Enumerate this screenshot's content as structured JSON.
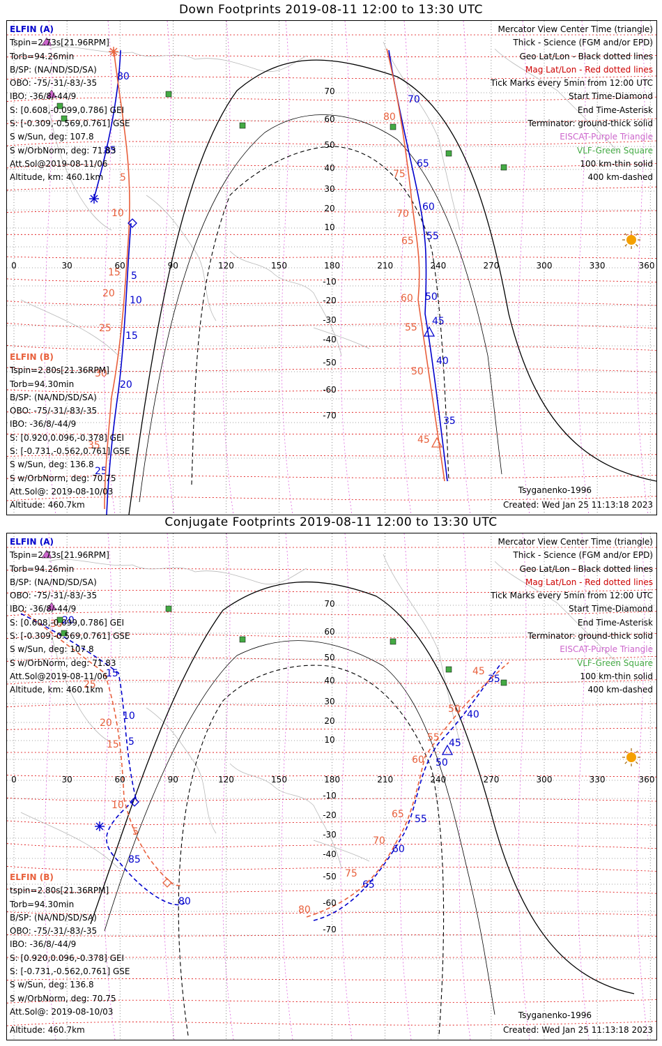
{
  "panels": [
    {
      "title": "Down Footprints 2019-08-11 12:00 to 13:30 UTC",
      "sc_a": {
        "name": "ELFIN (A)",
        "lines": [
          "Tspin=2.73s[21.96RPM]",
          "Torb=94.26min",
          "B/SP: (NA/ND/SD/SA)",
          "OBO: -75/-31/-83/-35",
          "IBO: -36/8/-44/9",
          "S: [0.608,-0.099,0.786] GEI",
          "S: [-0.309,-0.569,0.761] GSE",
          "S w/Sun, deg: 107.8",
          "S w/OrbNorm, deg: 71.83",
          "Att.Sol@2019-08-11/06",
          "Altitude, km: 460.1km"
        ]
      },
      "sc_b": {
        "name": "ELFIN (B)",
        "lines": [
          "Tspin=2.80s[21.36RPM]",
          "Torb=94.30min",
          "B/SP: (NA/ND/SD/SA)",
          "OBO: -75/-31/-83/-35",
          "IBO: -36/8/-44/9",
          "S: [0.920,0.096,-0.378] GEI",
          "S: [-0.731,-0.562,0.761] GSE",
          "S w/Sun, deg: 136.8",
          "S w/OrbNorm, deg: 70.75",
          "Att.Sol@: 2019-08-10/03",
          "Altitude: 460.7km"
        ]
      },
      "legend": {
        "black": [
          "Mercator View Center Time (triangle)",
          "Thick - Science (FGM and/or EPD)",
          "Geo Lat/Lon - Black dotted lines"
        ],
        "red": "Mag Lat/Lon - Red dotted lines",
        "black2": [
          "Tick Marks every 5min from 12:00 UTC",
          "Start Time-Diamond",
          "End Time-Asterisk",
          "Terminator: ground-thick solid"
        ],
        "purple": "EISCAT-Purple Triangle",
        "green": "VLF-Green Square",
        "black3": [
          "100 km-thin solid",
          "400 km-dashed"
        ]
      },
      "model": "Tsyganenko-1996",
      "created": "Created: Wed Jan 25 11:13:18 2023"
    },
    {
      "title": "Conjugate Footprints 2019-08-11 12:00 to 13:30 UTC",
      "sc_a": {
        "name": "ELFIN (A)",
        "lines": [
          "Tspin=2.73s[21.96RPM]",
          "Torb=94.26min",
          "B/SP: (NA/ND/SD/SA)",
          "OBO: -75/-31/-83/-35",
          "IBO: -36/8/-44/9",
          "S: [0.608,-0.099,0.786] GEI",
          "S: [-0.309,-0.569,0.761] GSE",
          "S w/Sun, deg: 107.8",
          "S w/OrbNorm, deg: 71.83",
          "Att.Sol@2019-08-11/06",
          "Altitude, km: 460.1km"
        ]
      },
      "sc_b": {
        "name": "ELFIN (B)",
        "lines": [
          "tspin=2.80s[21.36RPM]",
          "Torb=94.30min",
          "B/SP: (NA/ND/SD/SA)",
          "OBO: -75/-31/-83/-35",
          "IBO: -36/8/-44/9",
          "S: [0.920,0.096,-0.378] GEI",
          "S: [-0.731,-0.562,0.761] GSE",
          "S w/Sun, deg: 136.8",
          "S w/OrbNorm, deg: 70.75",
          "Att.Sol@: 2019-08-10/03",
          "Altitude: 460.7km"
        ]
      },
      "legend": {
        "black": [
          "Mercator View Center Time (triangle)",
          "Thick - Science (FGM and/or EPD)",
          "Geo Lat/Lon - Black dotted lines"
        ],
        "red": "Mag Lat/Lon - Red dotted lines",
        "black2": [
          "Tick Marks every 5min from 12:00 UTC",
          "Start Time-Diamond",
          "End Time-Asterisk",
          "Terminator: ground-thick solid"
        ],
        "purple": "EISCAT-Purple Triangle",
        "green": "VLF-Green Square",
        "black3": [
          "100 km-thin solid",
          "400 km-dashed"
        ]
      },
      "model": "Tsyganenko-1996",
      "created": "Created: Wed Jan 25 11:13:18 2023"
    }
  ],
  "axis": {
    "lon_ticks": [
      "0",
      "30",
      "60",
      "90",
      "120",
      "150",
      "180",
      "210",
      "240",
      "270",
      "300",
      "330",
      "360"
    ],
    "lat_ticks": [
      "70",
      "60",
      "50",
      "40",
      "30",
      "20",
      "10",
      "-10",
      "-20",
      "-30",
      "-40",
      "-50",
      "-60",
      "-70"
    ]
  },
  "colors": {
    "elfin_a": "#0000cc",
    "elfin_b": "#e8603c",
    "mag_grid": "#dd0000",
    "terminator": "#000000",
    "vlf": "#44aa44",
    "eiscat": "#cc66cc",
    "sun": "#f5a000"
  },
  "tracks": {
    "down_a": {
      "labels": [
        "80",
        "85",
        "5",
        "10",
        "15",
        "20",
        "25",
        "70",
        "65",
        "60",
        "55",
        "50",
        "45",
        "40",
        "35"
      ]
    },
    "down_b": {
      "labels": [
        "5",
        "10",
        "15",
        "20",
        "25",
        "30",
        "35",
        "80",
        "75",
        "70",
        "65",
        "60",
        "55",
        "50",
        "45"
      ]
    },
    "conj_a": {
      "labels": [
        "20",
        "15",
        "10",
        "5",
        "85",
        "80",
        "65",
        "60",
        "55",
        "50",
        "45",
        "40",
        "35"
      ]
    },
    "conj_b": {
      "labels": [
        "30",
        "25",
        "20",
        "15",
        "10",
        "5",
        "80",
        "75",
        "70",
        "65",
        "60",
        "55",
        "50",
        "45"
      ]
    }
  }
}
